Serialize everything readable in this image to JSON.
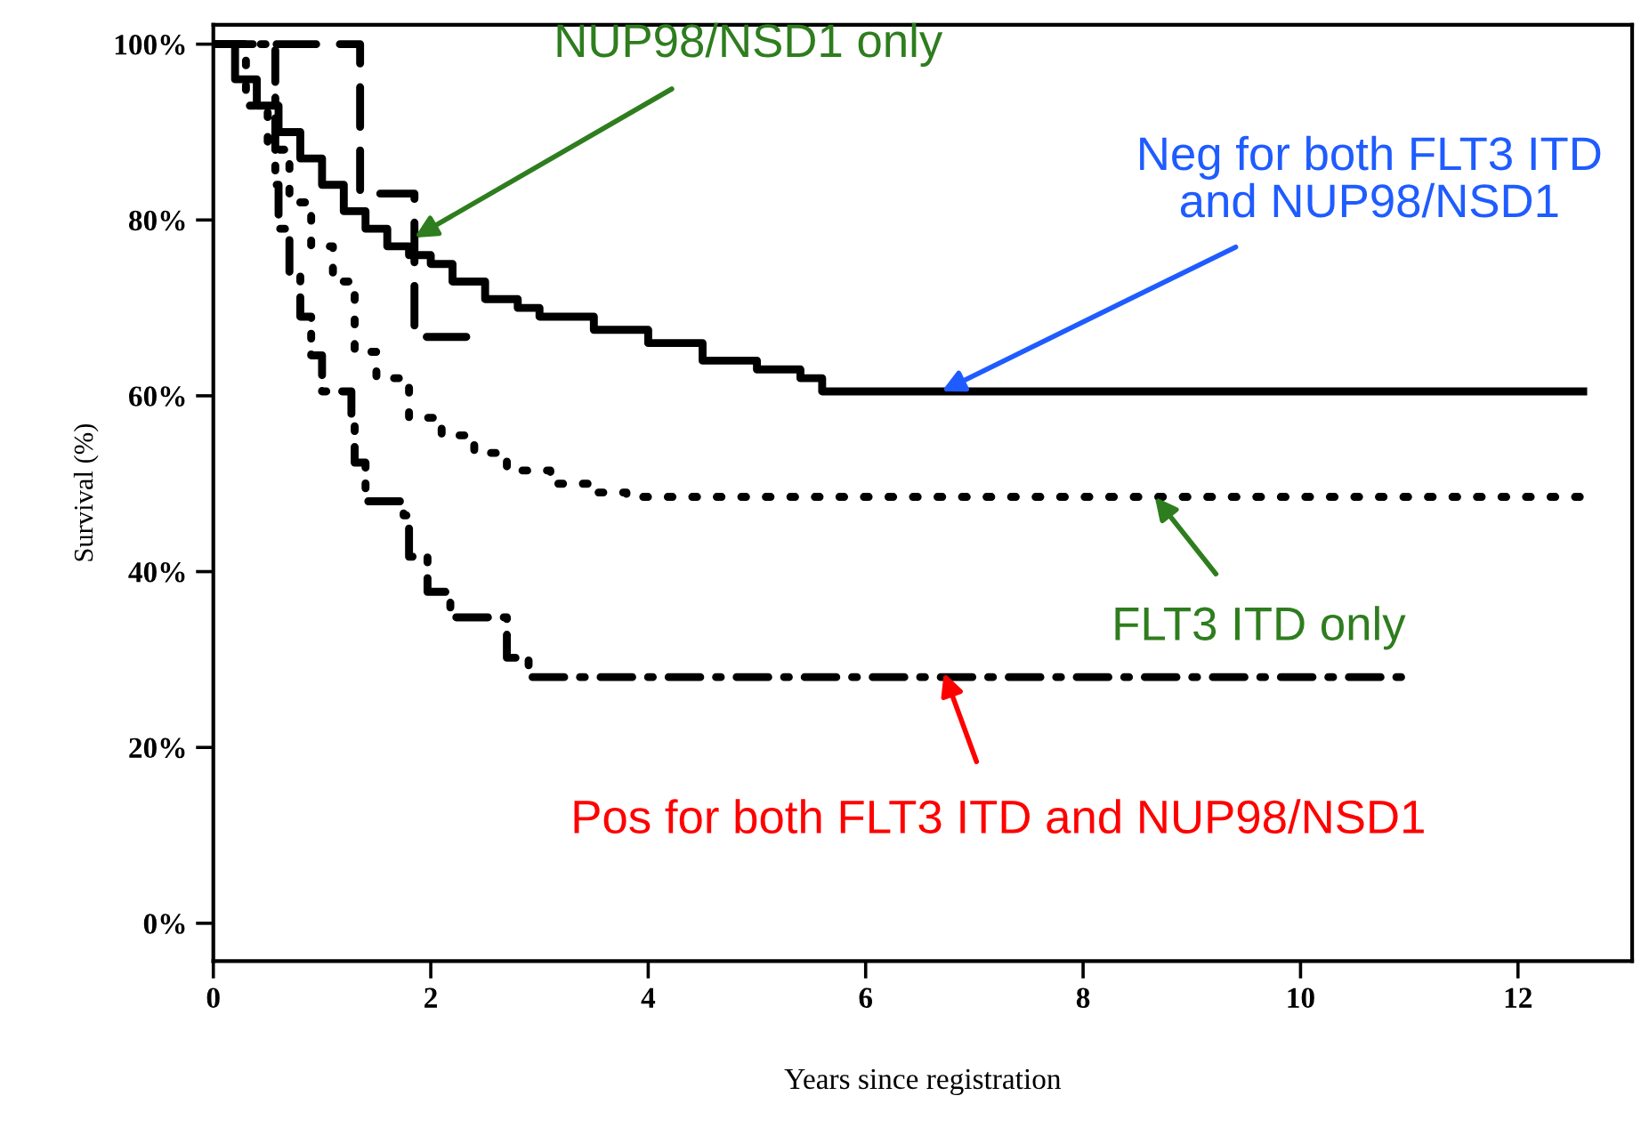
{
  "chart_data": {
    "type": "step",
    "xlabel": "Years since registration",
    "ylabel": "Survival (%)",
    "xlim": [
      0,
      13.05
    ],
    "ylim": [
      -4.3,
      102.2
    ],
    "xticks": [
      0,
      2,
      4,
      6,
      8,
      10,
      12
    ],
    "yticks": [
      {
        "value": 0,
        "label": "0%"
      },
      {
        "value": 20,
        "label": "20%"
      },
      {
        "value": 40,
        "label": "40%"
      },
      {
        "value": 60,
        "label": "60%"
      },
      {
        "value": 80,
        "label": "80%"
      },
      {
        "value": 100,
        "label": "100%"
      }
    ],
    "grid": false,
    "marker": "none",
    "series": [
      {
        "color": "#000000",
        "line_style": "solid",
        "x": [
          0,
          0.2,
          0.4,
          0.6,
          0.8,
          1.0,
          1.2,
          1.4,
          1.6,
          1.8,
          2.0,
          2.2,
          2.5,
          2.8,
          3.0,
          3.5,
          4.0,
          4.5,
          5.0,
          5.4,
          5.6,
          12.6
        ],
        "values": [
          100,
          96,
          93,
          90,
          87,
          84,
          81,
          79,
          77,
          76,
          75,
          73,
          71,
          70,
          69,
          67.5,
          66,
          64,
          63,
          62,
          60.5,
          60.5
        ]
      },
      {
        "color": "#000000",
        "line_style": "dashed",
        "x": [
          0,
          1.35,
          1.85,
          2.4
        ],
        "values": [
          100,
          83,
          66.7,
          66.7
        ]
      },
      {
        "color": "#000000",
        "line_style": "dotted",
        "x": [
          0,
          0.3,
          0.5,
          0.7,
          0.9,
          1.1,
          1.3,
          1.5,
          1.8,
          2.1,
          2.4,
          2.7,
          3.1,
          3.5,
          3.8,
          12.6
        ],
        "values": [
          100,
          93,
          88,
          82,
          77,
          73,
          65,
          62,
          57.5,
          55.5,
          53.5,
          51.5,
          50,
          49,
          48.5,
          48.5
        ]
      },
      {
        "color": "#000000",
        "line_style": "dashdot",
        "x": [
          0,
          0.57,
          0.6,
          0.7,
          0.8,
          0.9,
          1.0,
          1.27,
          1.3,
          1.4,
          1.75,
          1.8,
          1.97,
          2.18,
          2.7,
          2.9,
          10.93
        ],
        "values": [
          100,
          84,
          79,
          74,
          69,
          64.6,
          60.5,
          57.9,
          52.4,
          48,
          46.4,
          41.7,
          37.7,
          34.8,
          30.2,
          28,
          28
        ]
      }
    ],
    "annotations": [
      {
        "text": "NUP98/NSD1 only",
        "x": 1.85,
        "y": 78
      },
      {
        "text": "Neg for both FLT3 ITD\nand NUP98/NSD1",
        "x": 6.7,
        "y": 60.5
      },
      {
        "text": "FLT3 ITD only",
        "x": 8.66,
        "y": 48.5
      },
      {
        "text": "Pos for both FLT3 ITD and NUP98/NSD1",
        "x": 6.72,
        "y": 28.5
      }
    ]
  }
}
